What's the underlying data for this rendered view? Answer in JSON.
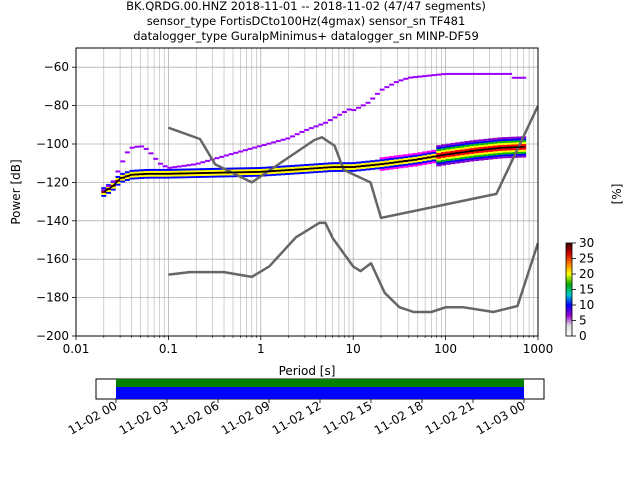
{
  "chart_data": [
    {
      "type": "ppsd",
      "title_lines": [
        "BK.QRDG.00.HNZ   2018-11-01 -- 2018-11-02  (47/47 segments)",
        "sensor_type FortisDCto100Hz(4gmax) sensor_sn TF481",
        "datalogger_type GuralpMinimus+ datalogger_sn MINP-DF59"
      ],
      "xlabel": "Period [s]",
      "ylabel": "Power [dB]",
      "xscale": "log",
      "xlim": [
        0.01,
        1000
      ],
      "ylim": [
        -200,
        -50
      ],
      "grid": true,
      "xticks": [
        {
          "value": 0.01,
          "label": "0.01"
        },
        {
          "value": 0.1,
          "label": "0.1"
        },
        {
          "value": 1,
          "label": "1"
        },
        {
          "value": 10,
          "label": "10"
        },
        {
          "value": 100,
          "label": "100"
        },
        {
          "value": 1000,
          "label": "1000"
        }
      ],
      "yticks": [
        {
          "value": -60,
          "label": "−60"
        },
        {
          "value": -80,
          "label": "−80"
        },
        {
          "value": -100,
          "label": "−100"
        },
        {
          "value": -120,
          "label": "−120"
        },
        {
          "value": -140,
          "label": "−140"
        },
        {
          "value": -160,
          "label": "−160"
        },
        {
          "value": -180,
          "label": "−180"
        },
        {
          "value": -200,
          "label": "−200"
        }
      ],
      "noise_models": {
        "color": "#666666",
        "new_high_noise_model": [
          [
            0.1,
            -91.5
          ],
          [
            0.22,
            -97.4
          ],
          [
            0.32,
            -110.5
          ],
          [
            0.8,
            -120
          ],
          [
            3.8,
            -97.9
          ],
          [
            4.6,
            -96.5
          ],
          [
            6.3,
            -101
          ],
          [
            7.9,
            -113.5
          ],
          [
            15.4,
            -120
          ],
          [
            20,
            -138.5
          ],
          [
            354.8,
            -126
          ],
          [
            10000,
            -80.1
          ]
        ],
        "new_low_noise_model": [
          [
            0.1,
            -168
          ],
          [
            0.17,
            -166.7
          ],
          [
            0.4,
            -166.7
          ],
          [
            0.8,
            -169.2
          ],
          [
            1.24,
            -163.7
          ],
          [
            2.4,
            -148.6
          ],
          [
            4.3,
            -141.1
          ],
          [
            5,
            -141.1
          ],
          [
            6,
            -149
          ],
          [
            10,
            -163.8
          ],
          [
            12,
            -166.2
          ],
          [
            15.6,
            -162.1
          ],
          [
            21.9,
            -177.5
          ],
          [
            31.6,
            -185
          ],
          [
            45,
            -187.5
          ],
          [
            70,
            -187.5
          ],
          [
            101,
            -185
          ],
          [
            154,
            -185
          ],
          [
            328,
            -187.5
          ],
          [
            600,
            -184.4
          ],
          [
            10000,
            -151.5
          ]
        ]
      },
      "mode_curve": [
        [
          0.02,
          -125
        ],
        [
          0.025,
          -122
        ],
        [
          0.03,
          -118
        ],
        [
          0.04,
          -116
        ],
        [
          0.06,
          -115.5
        ],
        [
          0.1,
          -115.5
        ],
        [
          0.3,
          -115
        ],
        [
          1,
          -114.5
        ],
        [
          3,
          -113
        ],
        [
          6,
          -112
        ],
        [
          10,
          -112
        ],
        [
          20,
          -110.5
        ],
        [
          50,
          -108
        ],
        [
          100,
          -105.5
        ],
        [
          200,
          -103.5
        ],
        [
          400,
          -102
        ],
        [
          700,
          -101.5
        ]
      ],
      "upper_track": [
        [
          0.02,
          -124
        ],
        [
          0.025,
          -120
        ],
        [
          0.03,
          -112
        ],
        [
          0.035,
          -105
        ],
        [
          0.04,
          -102
        ],
        [
          0.05,
          -101
        ],
        [
          0.06,
          -103
        ],
        [
          0.08,
          -110
        ],
        [
          0.1,
          -112.5
        ],
        [
          0.2,
          -110.5
        ],
        [
          0.5,
          -105
        ],
        [
          1,
          -101
        ],
        [
          2,
          -97
        ],
        [
          3,
          -93
        ],
        [
          5,
          -89
        ],
        [
          7,
          -85
        ],
        [
          9,
          -82
        ],
        [
          10,
          -82.5
        ],
        [
          14,
          -79
        ],
        [
          15,
          -78
        ],
        [
          20,
          -72
        ],
        [
          30,
          -67.5
        ],
        [
          40,
          -65.5
        ],
        [
          100,
          -63.5
        ],
        [
          300,
          -63.5
        ],
        [
          500,
          -63.5
        ],
        [
          550,
          -65.5
        ],
        [
          700,
          -65.5
        ]
      ],
      "colorbar": {
        "label": "[%]",
        "vmin": 0,
        "vmax": 30,
        "ticks": [
          0,
          5,
          10,
          15,
          20,
          25,
          30
        ],
        "colormap": [
          "#ffffff",
          "#e1e1e1",
          "#9900cc",
          "#0000ff",
          "#00cccc",
          "#00aa00",
          "#ffff00",
          "#ff7700",
          "#cc0000",
          "#330000"
        ]
      }
    },
    {
      "type": "coverage",
      "xlim": [
        "11-02 00",
        "11-03 00"
      ],
      "xticks": [
        "11-02 00",
        "11-02 03",
        "11-02 06",
        "11-02 09",
        "11-02 12",
        "11-02 15",
        "11-02 18",
        "11-02 21",
        "11-03 00"
      ],
      "covered_from": "11-02 00",
      "covered_to": "11-03 00",
      "colors": {
        "top": "#008000",
        "bottom": "#0000ff"
      }
    }
  ]
}
